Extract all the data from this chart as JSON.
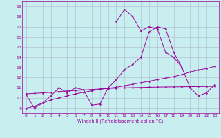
{
  "xlabel": "Windchill (Refroidissement éolien,°C)",
  "x": [
    0,
    1,
    2,
    3,
    4,
    5,
    6,
    7,
    8,
    9,
    10,
    11,
    12,
    13,
    14,
    15,
    16,
    17,
    18,
    19,
    20,
    21,
    22,
    23
  ],
  "bg_color": "#c8eef0",
  "line_color": "#990099",
  "grid_color": "#b0b8d0",
  "ylim": [
    8.5,
    19.5
  ],
  "xlim": [
    -0.5,
    23.5
  ],
  "yticks": [
    9,
    10,
    11,
    12,
    13,
    14,
    15,
    16,
    17,
    18,
    19
  ],
  "xticks": [
    0,
    1,
    2,
    3,
    4,
    5,
    6,
    7,
    8,
    9,
    10,
    11,
    12,
    13,
    14,
    15,
    16,
    17,
    18,
    19,
    20,
    21,
    22,
    23
  ],
  "y_upper": [
    null,
    null,
    null,
    null,
    null,
    null,
    null,
    null,
    null,
    null,
    null,
    17.5,
    18.7,
    18.0,
    16.6,
    17.0,
    16.8,
    14.5,
    14.0,
    13.0,
    null,
    null,
    null,
    null
  ],
  "y_main_wave": [
    10.3,
    9.0,
    9.5,
    10.2,
    11.0,
    10.5,
    11.0,
    10.8,
    9.3,
    9.4,
    11.0,
    11.8,
    12.8,
    13.3,
    14.0,
    16.5,
    17.0,
    16.8,
    14.5,
    13.0,
    11.0,
    10.2,
    10.5,
    11.3
  ],
  "y_rising": [
    9.0,
    9.2,
    9.5,
    9.8,
    10.0,
    10.2,
    10.4,
    10.55,
    10.7,
    10.85,
    10.95,
    11.05,
    11.2,
    11.35,
    11.5,
    11.65,
    11.8,
    11.95,
    12.1,
    12.3,
    12.55,
    12.75,
    12.9,
    13.1
  ],
  "y_flat": [
    10.4,
    10.45,
    10.5,
    10.55,
    10.62,
    10.68,
    10.73,
    10.78,
    10.83,
    10.88,
    10.93,
    10.96,
    10.99,
    11.01,
    11.03,
    11.05,
    11.07,
    11.08,
    11.09,
    11.1,
    11.11,
    11.12,
    11.13,
    11.15
  ]
}
